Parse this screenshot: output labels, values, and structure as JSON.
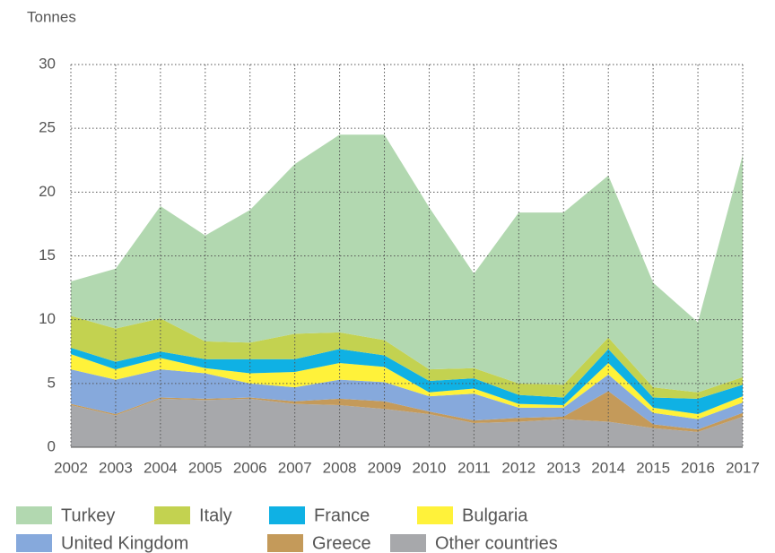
{
  "chart_data": {
    "type": "stacked_area",
    "y_label": "Tonnes",
    "categories": [
      "2002",
      "2003",
      "2004",
      "2005",
      "2006",
      "2007",
      "2008",
      "2009",
      "2010",
      "2011",
      "2012",
      "2013",
      "2014",
      "2015",
      "2016",
      "2017"
    ],
    "series": [
      {
        "name": "Turkey",
        "color": "#b2d8b0",
        "values": [
          2.7,
          4.7,
          8.8,
          8.3,
          10.4,
          13.3,
          15.5,
          16.1,
          12.7,
          7.4,
          13.4,
          13.5,
          12.7,
          8.2,
          5.5,
          17.4
        ]
      },
      {
        "name": "Italy",
        "color": "#c3d250",
        "values": [
          2.5,
          2.6,
          2.6,
          1.4,
          1.3,
          2.0,
          1.3,
          1.2,
          0.9,
          0.8,
          0.9,
          1.0,
          0.9,
          0.8,
          0.5,
          0.6
        ]
      },
      {
        "name": "France",
        "color": "#0fb1e4",
        "values": [
          0.5,
          0.6,
          0.5,
          0.7,
          1.1,
          1.0,
          1.1,
          0.9,
          0.9,
          0.8,
          0.7,
          0.6,
          1.1,
          0.8,
          1.2,
          0.9
        ]
      },
      {
        "name": "Bulgaria",
        "color": "#fff23a",
        "values": [
          1.2,
          0.8,
          0.9,
          0.4,
          0.8,
          1.2,
          1.3,
          1.2,
          0.3,
          0.4,
          0.3,
          0.2,
          0.9,
          0.4,
          0.4,
          0.5
        ]
      },
      {
        "name": "United Kingdom",
        "color": "#86a9dc",
        "values": [
          2.7,
          2.7,
          2.2,
          2.0,
          1.1,
          1.1,
          1.5,
          1.5,
          1.2,
          2.1,
          0.8,
          0.7,
          1.3,
          0.9,
          0.8,
          0.8
        ]
      },
      {
        "name": "Greece",
        "color": "#c49a5a",
        "values": [
          0.1,
          0.1,
          0.1,
          0.1,
          0.1,
          0.2,
          0.5,
          0.6,
          0.2,
          0.2,
          0.3,
          0.2,
          2.4,
          0.3,
          0.2,
          0.3
        ]
      },
      {
        "name": "Other countries",
        "color": "#a7a8ab",
        "values": [
          3.3,
          2.5,
          3.8,
          3.7,
          3.8,
          3.4,
          3.3,
          3.0,
          2.6,
          1.9,
          2.0,
          2.2,
          2.0,
          1.5,
          1.2,
          2.4
        ]
      }
    ],
    "ylim": [
      0,
      30
    ],
    "yticks": [
      0,
      5,
      10,
      15,
      20,
      25,
      30
    ],
    "grid": true
  }
}
